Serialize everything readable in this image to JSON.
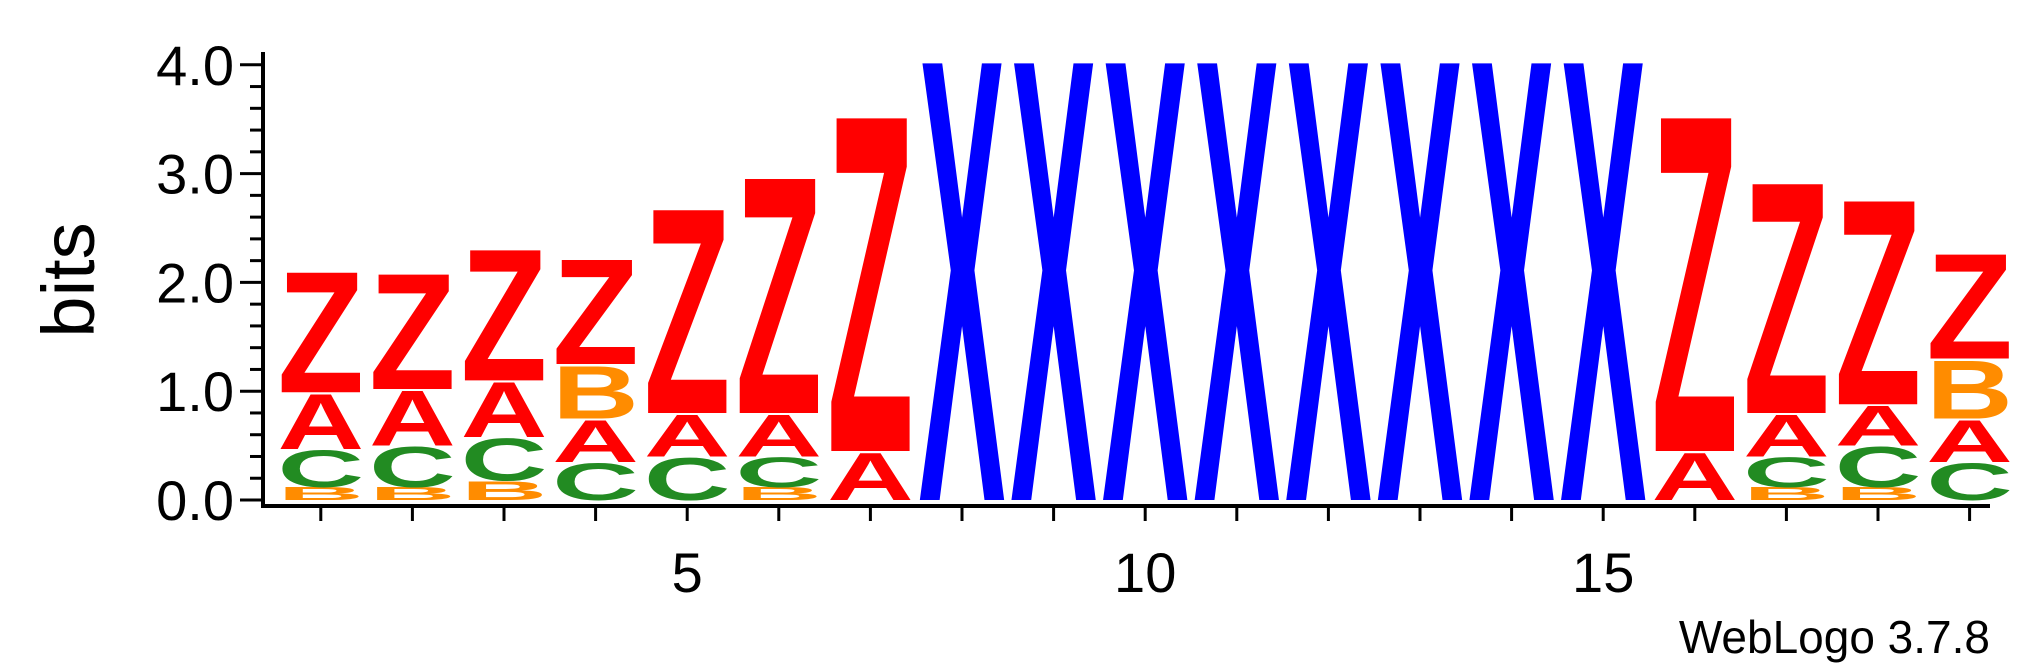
{
  "chart_data": {
    "type": "sequence-logo",
    "ylabel": "bits",
    "ylim": [
      0,
      4.0
    ],
    "y_ticks": [
      "0.0",
      "1.0",
      "2.0",
      "3.0",
      "4.0"
    ],
    "x_ticks": [
      5,
      10,
      15
    ],
    "credit": "WebLogo 3.7.8",
    "colors": {
      "Z": "#ff0000",
      "A": "#ff0000",
      "B": "#ff8c00",
      "C": "#228b22",
      "X": "#0000ff"
    },
    "positions": [
      {
        "pos": 1,
        "stack": [
          {
            "letter": "B",
            "bits": 0.12
          },
          {
            "letter": "C",
            "bits": 0.35
          },
          {
            "letter": "A",
            "bits": 0.52
          },
          {
            "letter": "Z",
            "bits": 1.15
          }
        ]
      },
      {
        "pos": 2,
        "stack": [
          {
            "letter": "B",
            "bits": 0.12
          },
          {
            "letter": "C",
            "bits": 0.38
          },
          {
            "letter": "A",
            "bits": 0.52
          },
          {
            "letter": "Z",
            "bits": 1.1
          }
        ]
      },
      {
        "pos": 3,
        "stack": [
          {
            "letter": "B",
            "bits": 0.18
          },
          {
            "letter": "C",
            "bits": 0.4
          },
          {
            "letter": "A",
            "bits": 0.52
          },
          {
            "letter": "Z",
            "bits": 1.25
          }
        ]
      },
      {
        "pos": 4,
        "stack": [
          {
            "letter": "C",
            "bits": 0.35
          },
          {
            "letter": "A",
            "bits": 0.4
          },
          {
            "letter": "B",
            "bits": 0.5
          },
          {
            "letter": "Z",
            "bits": 1.0
          }
        ]
      },
      {
        "pos": 5,
        "stack": [
          {
            "letter": "C",
            "bits": 0.4
          },
          {
            "letter": "A",
            "bits": 0.4
          },
          {
            "letter": "Z",
            "bits": 1.95
          }
        ]
      },
      {
        "pos": 6,
        "stack": [
          {
            "letter": "B",
            "bits": 0.12
          },
          {
            "letter": "C",
            "bits": 0.28
          },
          {
            "letter": "A",
            "bits": 0.4
          },
          {
            "letter": "Z",
            "bits": 2.25
          }
        ]
      },
      {
        "pos": 7,
        "stack": [
          {
            "letter": "A",
            "bits": 0.45
          },
          {
            "letter": "Z",
            "bits": 3.2
          }
        ]
      },
      {
        "pos": 8,
        "stack": [
          {
            "letter": "X",
            "bits": 4.2
          }
        ]
      },
      {
        "pos": 9,
        "stack": [
          {
            "letter": "X",
            "bits": 4.2
          }
        ]
      },
      {
        "pos": 10,
        "stack": [
          {
            "letter": "X",
            "bits": 4.2
          }
        ]
      },
      {
        "pos": 11,
        "stack": [
          {
            "letter": "X",
            "bits": 4.2
          }
        ]
      },
      {
        "pos": 12,
        "stack": [
          {
            "letter": "X",
            "bits": 4.2
          }
        ]
      },
      {
        "pos": 13,
        "stack": [
          {
            "letter": "X",
            "bits": 4.2
          }
        ]
      },
      {
        "pos": 14,
        "stack": [
          {
            "letter": "X",
            "bits": 4.2
          }
        ]
      },
      {
        "pos": 15,
        "stack": [
          {
            "letter": "X",
            "bits": 4.2
          }
        ]
      },
      {
        "pos": 16,
        "stack": [
          {
            "letter": "A",
            "bits": 0.45
          },
          {
            "letter": "Z",
            "bits": 3.2
          }
        ]
      },
      {
        "pos": 17,
        "stack": [
          {
            "letter": "B",
            "bits": 0.12
          },
          {
            "letter": "C",
            "bits": 0.28
          },
          {
            "letter": "A",
            "bits": 0.4
          },
          {
            "letter": "Z",
            "bits": 2.2
          }
        ]
      },
      {
        "pos": 18,
        "stack": [
          {
            "letter": "B",
            "bits": 0.12
          },
          {
            "letter": "C",
            "bits": 0.38
          },
          {
            "letter": "A",
            "bits": 0.38
          },
          {
            "letter": "Z",
            "bits": 1.95
          }
        ]
      },
      {
        "pos": 19,
        "stack": [
          {
            "letter": "C",
            "bits": 0.35
          },
          {
            "letter": "A",
            "bits": 0.4
          },
          {
            "letter": "B",
            "bits": 0.55
          },
          {
            "letter": "Z",
            "bits": 1.0
          }
        ]
      }
    ]
  }
}
